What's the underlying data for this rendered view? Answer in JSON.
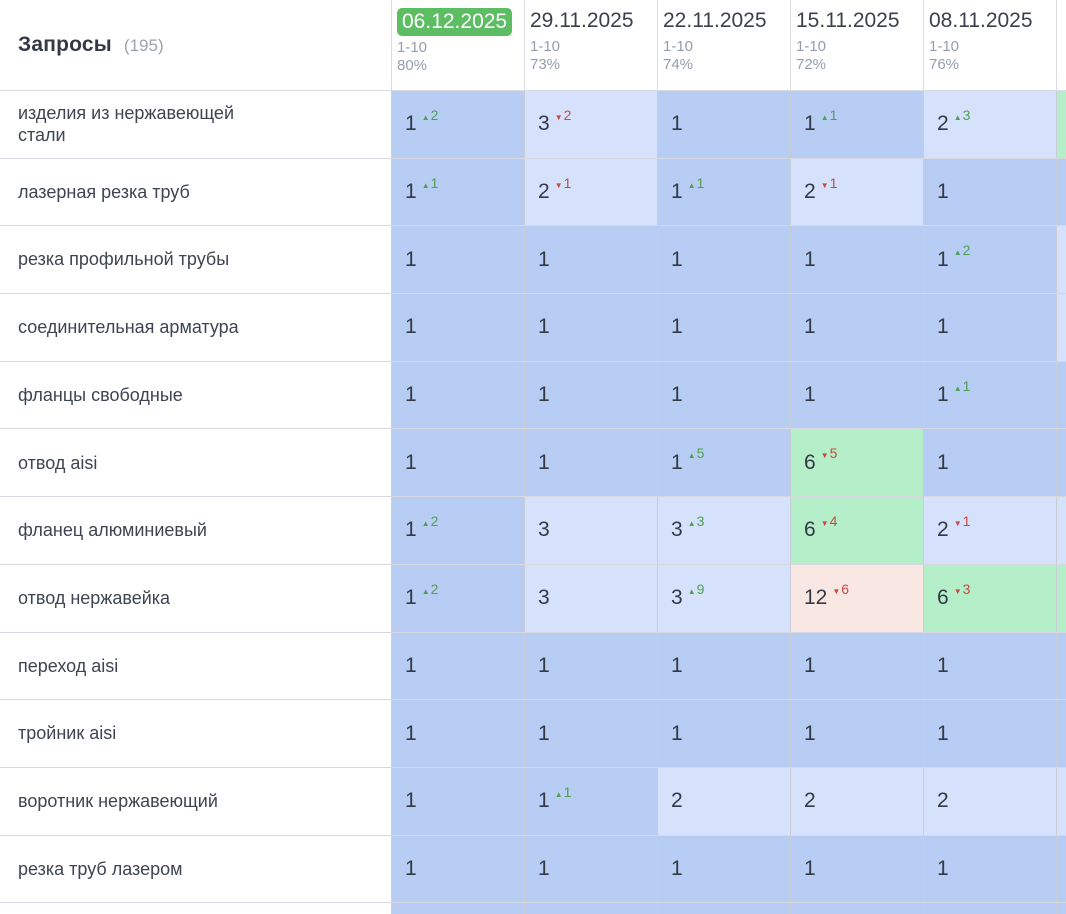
{
  "header": {
    "title": "Запросы",
    "count": "(195)"
  },
  "columns": [
    {
      "date": "06.12.2025",
      "range": "1-10",
      "coverage": "80%",
      "highlighted": true
    },
    {
      "date": "29.11.2025",
      "range": "1-10",
      "coverage": "73%",
      "highlighted": false
    },
    {
      "date": "22.11.2025",
      "range": "1-10",
      "coverage": "74%",
      "highlighted": false
    },
    {
      "date": "15.11.2025",
      "range": "1-10",
      "coverage": "72%",
      "highlighted": false
    },
    {
      "date": "08.11.2025",
      "range": "1-10",
      "coverage": "76%",
      "highlighted": false
    }
  ],
  "rows": [
    {
      "query": "изделия из нержавеющей стали",
      "cells": [
        {
          "pos": 1,
          "delta": 2
        },
        {
          "pos": 3,
          "delta": -2
        },
        {
          "pos": 1
        },
        {
          "pos": 1,
          "delta": 1
        },
        {
          "pos": 2,
          "delta": 3
        }
      ],
      "tail_band": "top10"
    },
    {
      "query": "лазерная резка труб",
      "cells": [
        {
          "pos": 1,
          "delta": 1
        },
        {
          "pos": 2,
          "delta": -1
        },
        {
          "pos": 1,
          "delta": 1
        },
        {
          "pos": 2,
          "delta": -1
        },
        {
          "pos": 1
        }
      ],
      "tail_band": "top1"
    },
    {
      "query": "резка профильной трубы",
      "cells": [
        {
          "pos": 1
        },
        {
          "pos": 1
        },
        {
          "pos": 1
        },
        {
          "pos": 1
        },
        {
          "pos": 1,
          "delta": 2
        }
      ],
      "tail_band": "top3"
    },
    {
      "query": "соединительная арматура",
      "cells": [
        {
          "pos": 1
        },
        {
          "pos": 1
        },
        {
          "pos": 1
        },
        {
          "pos": 1
        },
        {
          "pos": 1
        }
      ],
      "tail_band": "top3"
    },
    {
      "query": "фланцы свободные",
      "cells": [
        {
          "pos": 1
        },
        {
          "pos": 1
        },
        {
          "pos": 1
        },
        {
          "pos": 1
        },
        {
          "pos": 1,
          "delta": 1
        }
      ],
      "tail_band": "top1"
    },
    {
      "query": "отвод aisi",
      "cells": [
        {
          "pos": 1
        },
        {
          "pos": 1
        },
        {
          "pos": 1,
          "delta": 5
        },
        {
          "pos": 6,
          "delta": -5
        },
        {
          "pos": 1
        }
      ],
      "tail_band": "top1"
    },
    {
      "query": "фланец алюминиевый",
      "cells": [
        {
          "pos": 1,
          "delta": 2
        },
        {
          "pos": 3
        },
        {
          "pos": 3,
          "delta": 3
        },
        {
          "pos": 6,
          "delta": -4
        },
        {
          "pos": 2,
          "delta": -1
        }
      ],
      "tail_band": "top3"
    },
    {
      "query": "отвод нержавейка",
      "cells": [
        {
          "pos": 1,
          "delta": 2
        },
        {
          "pos": 3
        },
        {
          "pos": 3,
          "delta": 9
        },
        {
          "pos": 12,
          "delta": -6
        },
        {
          "pos": 6,
          "delta": -3
        }
      ],
      "tail_band": "top10"
    },
    {
      "query": "переход aisi",
      "cells": [
        {
          "pos": 1
        },
        {
          "pos": 1
        },
        {
          "pos": 1
        },
        {
          "pos": 1
        },
        {
          "pos": 1
        }
      ],
      "tail_band": "top1"
    },
    {
      "query": "тройник aisi",
      "cells": [
        {
          "pos": 1
        },
        {
          "pos": 1
        },
        {
          "pos": 1
        },
        {
          "pos": 1
        },
        {
          "pos": 1
        }
      ],
      "tail_band": "top1"
    },
    {
      "query": "воротник нержавеющий",
      "cells": [
        {
          "pos": 1
        },
        {
          "pos": 1,
          "delta": 1
        },
        {
          "pos": 2
        },
        {
          "pos": 2
        },
        {
          "pos": 2
        }
      ],
      "tail_band": "top3"
    },
    {
      "query": "резка труб лазером",
      "cells": [
        {
          "pos": 1
        },
        {
          "pos": 1
        },
        {
          "pos": 1
        },
        {
          "pos": 1
        },
        {
          "pos": 1
        }
      ],
      "tail_band": "top1"
    }
  ],
  "partial_next_row": {
    "visible": true,
    "band": "top1"
  },
  "icons": {
    "up": "▲",
    "down": "▼"
  },
  "colors": {
    "badge_green": "#5cbd63",
    "cell_top1_blue": "#b8cdf4",
    "cell_top3_blue": "#d6e1fb",
    "cell_top10_green": "#b5efc9",
    "cell_below10_pink": "#f9e7e3",
    "delta_up_green": "#4f9f55",
    "delta_down_red": "#c64b3f"
  }
}
